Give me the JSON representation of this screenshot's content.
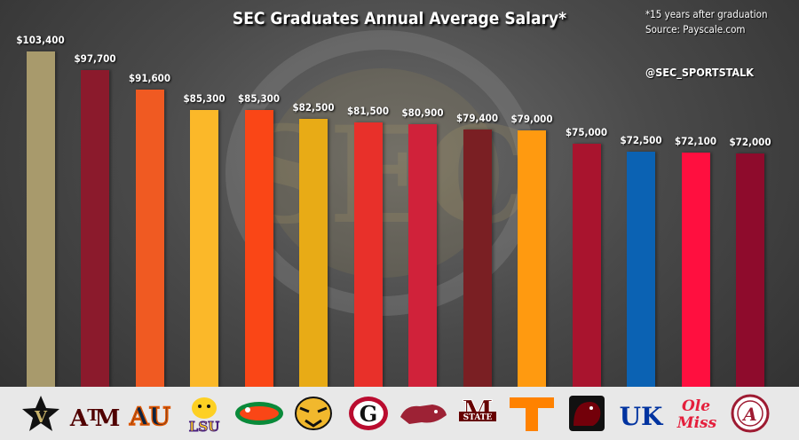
{
  "chart_data": {
    "type": "bar",
    "title": "SEC Graduates Annual Average Salary*",
    "footnote_line1": "*15 years after graduation",
    "footnote_line2": "Source: Payscale.com",
    "handle": "@SEC_SPORTSTALK",
    "ylim": [
      0,
      110000
    ],
    "categories": [
      "Vanderbilt",
      "Texas A&M",
      "Auburn",
      "LSU",
      "Florida",
      "Missouri",
      "Georgia",
      "Arkansas",
      "Mississippi State",
      "Tennessee",
      "South Carolina",
      "Kentucky",
      "Ole Miss",
      "Alabama"
    ],
    "values": [
      103400,
      97700,
      91600,
      85300,
      85300,
      82500,
      81500,
      80900,
      79400,
      79000,
      75000,
      72500,
      72100,
      72000
    ],
    "value_labels": [
      "$103,400",
      "$97,700",
      "$91,600",
      "$85,300",
      "$85,300",
      "$82,500",
      "$81,500",
      "$80,900",
      "$79,400",
      "$79,000",
      "$75,000",
      "$72,500",
      "$72,100",
      "$72,000"
    ],
    "colors": [
      "#a89a6c",
      "#8b1a2c",
      "#f05a22",
      "#fbb829",
      "#fa4616",
      "#e8ab16",
      "#e8302a",
      "#d0223a",
      "#7a1f23",
      "#ff9a10",
      "#a9142e",
      "#0b62b3",
      "#ff0f3f",
      "#8e0b2c"
    ],
    "logos": [
      {
        "text": "V",
        "color": "#111111",
        "bg": "#c9b36a",
        "shape": "star"
      },
      {
        "text": "ATM",
        "color": "#500000",
        "bg": "",
        "shape": "text"
      },
      {
        "text": "AU",
        "color": "#0c2340",
        "bg": "",
        "shape": "text-outline"
      },
      {
        "text": "LSU",
        "color": "#461d7c",
        "bg": "#fdd023",
        "shape": "tiger"
      },
      {
        "text": "",
        "color": "#0a8a3a",
        "bg": "#fa4616",
        "shape": "gator"
      },
      {
        "text": "",
        "color": "#111111",
        "bg": "#f1b82d",
        "shape": "tiger-head"
      },
      {
        "text": "G",
        "color": "#111111",
        "bg": "#ba0c2f",
        "shape": "oval"
      },
      {
        "text": "",
        "color": "#9d2235",
        "bg": "",
        "shape": "hog"
      },
      {
        "text": "STATE",
        "color": "#660000",
        "bg": "",
        "shape": "m-state"
      },
      {
        "text": "T",
        "color": "#ff8200",
        "bg": "",
        "shape": "big-t"
      },
      {
        "text": "",
        "color": "#73000a",
        "bg": "#111111",
        "shape": "gamecock"
      },
      {
        "text": "UK",
        "color": "#0033a0",
        "bg": "",
        "shape": "text-outline"
      },
      {
        "text": "Ole Miss",
        "color": "#e41e3b",
        "bg": "",
        "shape": "script"
      },
      {
        "text": "A",
        "color": "#9e1b32",
        "bg": "",
        "shape": "circle-a"
      }
    ]
  }
}
